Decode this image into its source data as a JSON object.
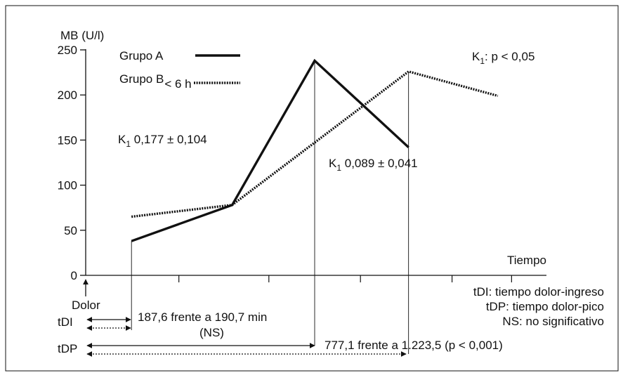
{
  "chart_data": {
    "type": "line",
    "ylabel": "MB (U/l)",
    "xlabel": "Tiempo",
    "ylim": [
      0,
      250
    ],
    "yticks": [
      "0",
      "50",
      "100",
      "150",
      "200",
      "250"
    ],
    "series": [
      {
        "name": "Grupo A",
        "style": "solid",
        "points": [
          [
            0.2,
            38
          ],
          [
            0.64,
            78
          ],
          [
            1.0,
            238
          ],
          [
            1.41,
            142
          ]
        ]
      },
      {
        "name": "Grupo B",
        "name_sub": "< 6 h",
        "style": "dotted",
        "points": [
          [
            0.2,
            65
          ],
          [
            0.64,
            78
          ],
          [
            1.41,
            226
          ],
          [
            1.8,
            199
          ]
        ]
      }
    ],
    "annotations": {
      "k_a_main": "K",
      "k_a_sub": "1",
      "k_a_rest": " 0,177 ± 0,104",
      "k_b_main": "K",
      "k_b_sub": "1",
      "k_b_rest": " 0,089 ± 0,041",
      "k_p_main": "K",
      "k_p_sub": "1",
      "k_p_rest": ": p < 0,05",
      "dolor": "Dolor",
      "tdi": "tDI",
      "tdp": "tDP",
      "tdi_text": "187,6 frente a 190,7 min",
      "tdi_ns": "(NS)",
      "tdp_text": "777,1 frente a 1.223,5 (p < 0,001)",
      "legend_tdi": "tDI: tiempo dolor-ingreso",
      "legend_tdp": "tDP: tiempo dolor-pico",
      "legend_ns": "NS: no significativo"
    }
  }
}
